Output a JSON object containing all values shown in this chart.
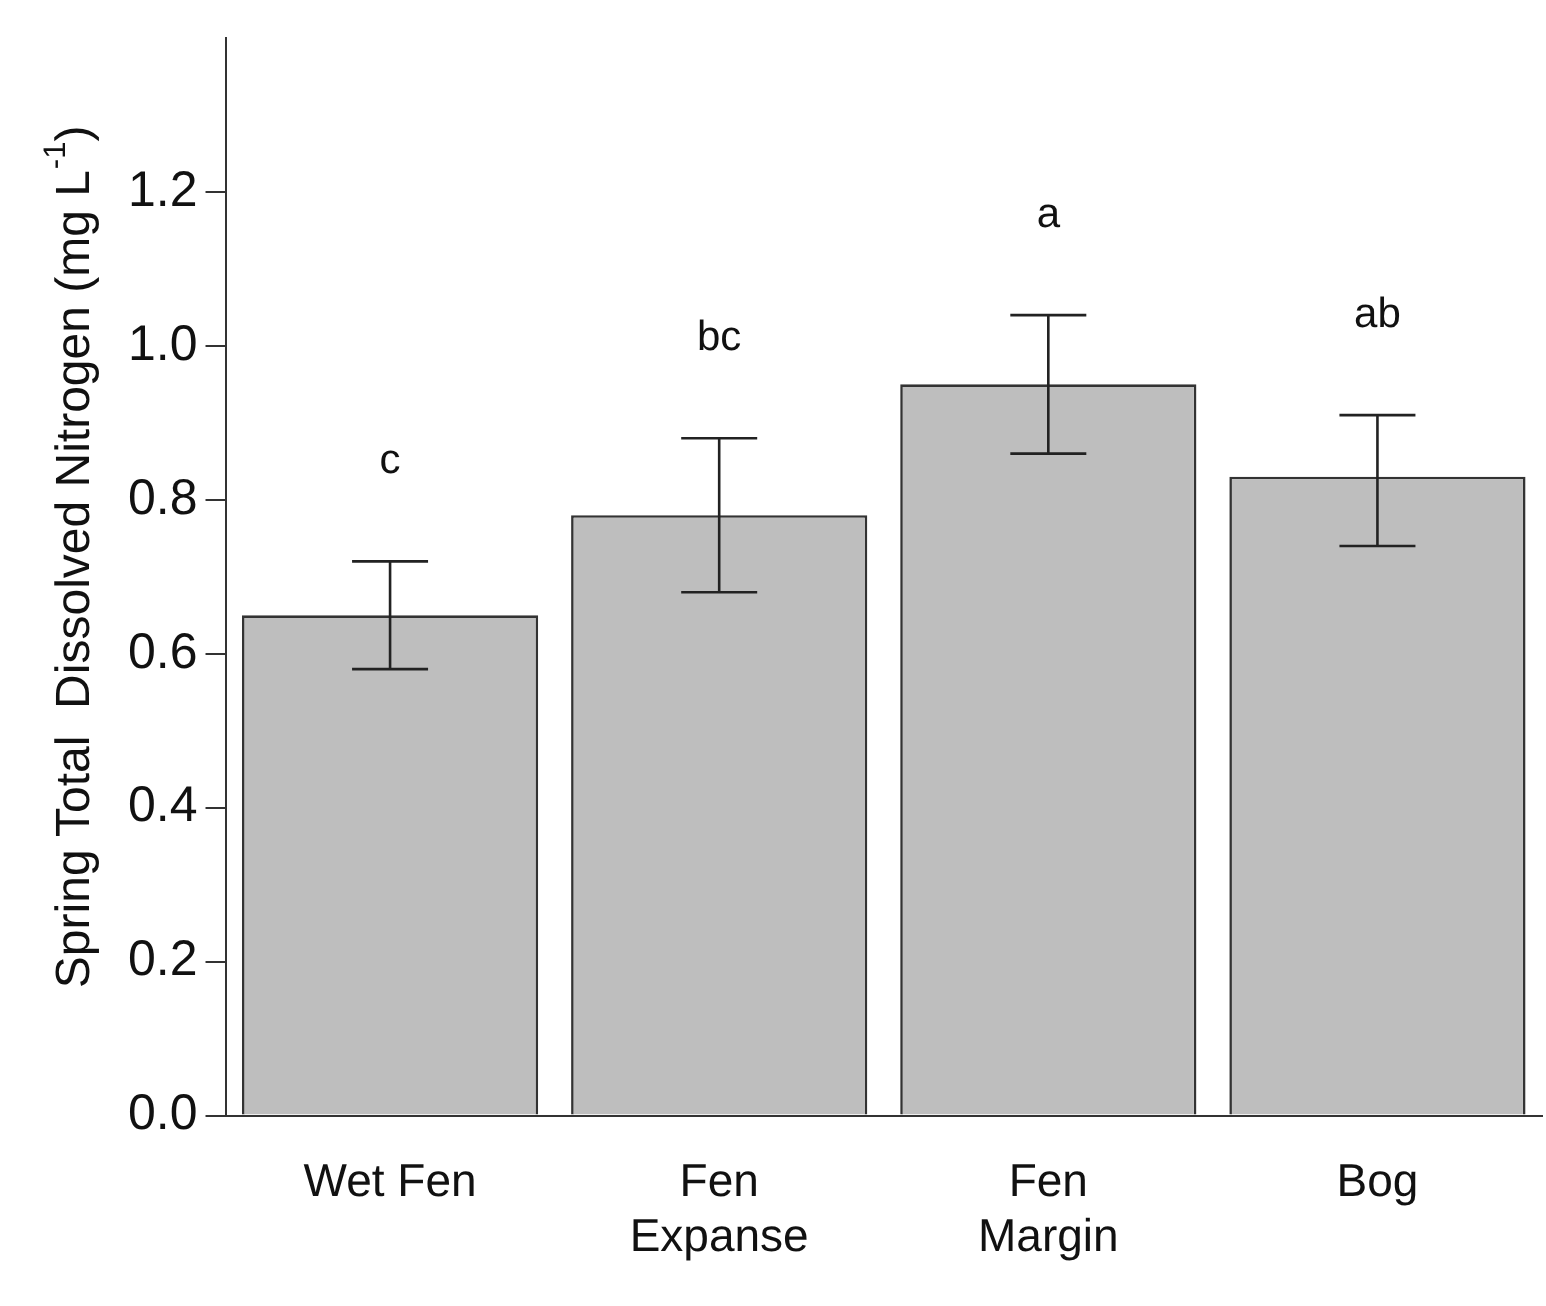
{
  "chart_data": {
    "type": "bar",
    "ylabel": "Spring Total  Dissolved Nitrogen (mg L$^{-1}$)",
    "categories": [
      "Wet Fen",
      "Fen\nExpanse",
      "Fen\nMargin",
      "Bog"
    ],
    "values": [
      0.65,
      0.78,
      0.95,
      0.83
    ],
    "errors": [
      [
        0.58,
        0.72
      ],
      [
        0.68,
        0.88
      ],
      [
        0.86,
        1.04
      ],
      [
        0.74,
        0.91
      ]
    ],
    "color": "#bebebe",
    "ylim": [
      0,
      1.4
    ],
    "yticks": [
      {
        "value": 0,
        "label": "0.0"
      },
      {
        "value": 0.2,
        "label": "0.2"
      },
      {
        "value": 0.4,
        "label": "0.4"
      },
      {
        "value": 0.6,
        "label": "0.6"
      },
      {
        "value": 0.8,
        "label": "0.8"
      },
      {
        "value": 1,
        "label": "1.0"
      },
      {
        "value": 1.2,
        "label": "1.2"
      }
    ],
    "grid": false,
    "legend": false,
    "annotations": [
      "c",
      "bc",
      "a",
      "ab"
    ]
  }
}
